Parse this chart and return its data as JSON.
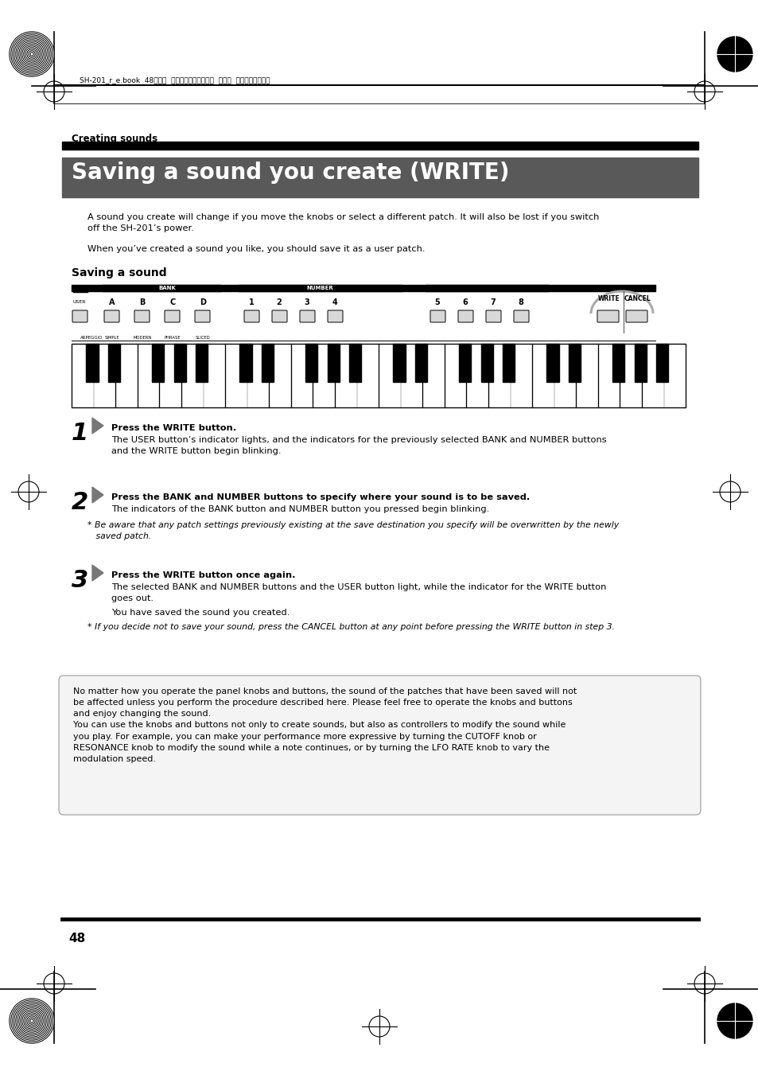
{
  "bg_color": "#ffffff",
  "header_line_text": "SH-201_r_e.book  48ページ  ２００６年４月２７日  木曜日  午前１１時２８分",
  "section_label": "Creating sounds",
  "title_text": "Saving a sound you create (WRITE)",
  "title_bg": "#595959",
  "title_fg": "#ffffff",
  "body_text_1": "A sound you create will change if you move the knobs or select a different patch. It will also be lost if you switch\noff the SH-201’s power.",
  "body_text_2": "When you’ve created a sound you like, you should save it as a user patch.",
  "subsection_label": "Saving a sound",
  "step1_title": "Press the WRITE button.",
  "step1_body": "The USER button’s indicator lights, and the indicators for the previously selected BANK and NUMBER buttons\nand the WRITE button begin blinking.",
  "step2_title": "Press the BANK and NUMBER buttons to specify where your sound is to be saved.",
  "step2_body": "The indicators of the BANK button and NUMBER button you pressed begin blinking.",
  "step2_note": "* Be aware that any patch settings previously existing at the save destination you specify will be overwritten by the newly\n   saved patch.",
  "step3_title": "Press the WRITE button once again.",
  "step3_body_1": "The selected BANK and NUMBER buttons and the USER button light, while the indicator for the WRITE button\ngoes out.",
  "step3_body_2": "You have saved the sound you created.",
  "step3_note": "* If you decide not to save your sound, press the CANCEL button at any point before pressing the WRITE button in step 3.",
  "info_box_text": "No matter how you operate the panel knobs and buttons, the sound of the patches that have been saved will not\nbe affected unless you perform the procedure described here. Please feel free to operate the knobs and buttons\nand enjoy changing the sound.\nYou can use the knobs and buttons not only to create sounds, but also as controllers to modify the sound while\nyou play. For example, you can make your performance more expressive by turning the CUTOFF knob or\nRESONANCE knob to modify the sound while a note continues, or by turning the LFO RATE knob to vary the\nmodulation speed.",
  "page_number": "48"
}
